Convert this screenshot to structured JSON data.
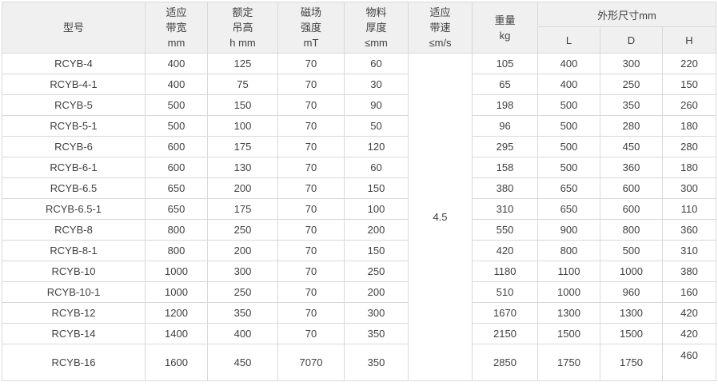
{
  "table": {
    "headers": {
      "model": "型号",
      "bandwidth": [
        "适应",
        "带宽",
        "mm"
      ],
      "lift_height": [
        "额定",
        "吊高",
        "h mm"
      ],
      "field_strength": [
        "磁场",
        "强度",
        "mT"
      ],
      "material_thickness": [
        "物料",
        "厚度",
        "≤mm"
      ],
      "belt_speed": [
        "适应",
        "带速",
        "≤m/s"
      ],
      "weight": [
        "重量",
        "kg"
      ],
      "dimensions": "外形尺寸mm",
      "dim_l": "L",
      "dim_d": "D",
      "dim_h": "H"
    },
    "belt_speed_value": "4.5",
    "rows": [
      {
        "model": "RCYB-4",
        "bandwidth": "400",
        "lift": "125",
        "field": "70",
        "thickness": "60",
        "weight": "105",
        "l": "400",
        "d": "300",
        "h": "220"
      },
      {
        "model": "RCYB-4-1",
        "bandwidth": "400",
        "lift": "75",
        "field": "70",
        "thickness": "30",
        "weight": "65",
        "l": "400",
        "d": "250",
        "h": "150"
      },
      {
        "model": "RCYB-5",
        "bandwidth": "500",
        "lift": "150",
        "field": "70",
        "thickness": "90",
        "weight": "198",
        "l": "500",
        "d": "350",
        "h": "260"
      },
      {
        "model": "RCYB-5-1",
        "bandwidth": "500",
        "lift": "100",
        "field": "70",
        "thickness": "50",
        "weight": "96",
        "l": "500",
        "d": "280",
        "h": "180"
      },
      {
        "model": "RCYB-6",
        "bandwidth": "600",
        "lift": "175",
        "field": "70",
        "thickness": "120",
        "weight": "295",
        "l": "500",
        "d": "450",
        "h": "280"
      },
      {
        "model": "RCYB-6-1",
        "bandwidth": "600",
        "lift": "130",
        "field": "70",
        "thickness": "60",
        "weight": "158",
        "l": "500",
        "d": "360",
        "h": "180"
      },
      {
        "model": "RCYB-6.5",
        "bandwidth": "650",
        "lift": "200",
        "field": "70",
        "thickness": "150",
        "weight": "380",
        "l": "650",
        "d": "600",
        "h": "300"
      },
      {
        "model": "RCYB-6.5-1",
        "bandwidth": "650",
        "lift": "175",
        "field": "70",
        "thickness": "100",
        "weight": "310",
        "l": "650",
        "d": "600",
        "h": "110"
      },
      {
        "model": "RCYB-8",
        "bandwidth": "800",
        "lift": "250",
        "field": "70",
        "thickness": "200",
        "weight": "550",
        "l": "900",
        "d": "800",
        "h": "360"
      },
      {
        "model": "RCYB-8-1",
        "bandwidth": "800",
        "lift": "200",
        "field": "70",
        "thickness": "150",
        "weight": "420",
        "l": "800",
        "d": "500",
        "h": "310"
      },
      {
        "model": "RCYB-10",
        "bandwidth": "1000",
        "lift": "300",
        "field": "70",
        "thickness": "250",
        "weight": "1180",
        "l": "1100",
        "d": "1000",
        "h": "380"
      },
      {
        "model": "RCYB-10-1",
        "bandwidth": "1000",
        "lift": "250",
        "field": "70",
        "thickness": "200",
        "weight": "510",
        "l": "1000",
        "d": "960",
        "h": "160"
      },
      {
        "model": "RCYB-12",
        "bandwidth": "1200",
        "lift": "350",
        "field": "70",
        "thickness": "300",
        "weight": "1670",
        "l": "1300",
        "d": "1300",
        "h": "420"
      },
      {
        "model": "RCYB-14",
        "bandwidth": "1400",
        "lift": "400",
        "field": "70",
        "thickness": "350",
        "weight": "2150",
        "l": "1500",
        "d": "1500",
        "h": "420"
      },
      {
        "model": "RCYB-16",
        "bandwidth": "1600",
        "lift": "450",
        "field": "7070",
        "thickness": "350",
        "weight": "2850",
        "l": "1750",
        "d": "1750",
        "h": "460"
      }
    ]
  },
  "colors": {
    "header_bg": "#f0f0f0",
    "border": "#d9d9d9",
    "text": "#404040",
    "row_bg": "#ffffff"
  }
}
